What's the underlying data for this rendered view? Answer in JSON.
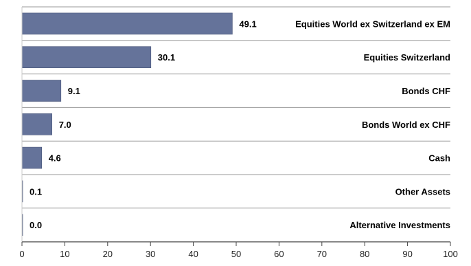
{
  "chart_data": {
    "type": "bar",
    "orientation": "horizontal",
    "categories": [
      "Equities World ex Switzerland ex EM",
      "Equities Switzerland",
      "Bonds CHF",
      "Bonds World ex CHF",
      "Cash",
      "Other Assets",
      "Alternative Investments"
    ],
    "values": [
      49.1,
      30.1,
      9.1,
      7.0,
      4.6,
      0.1,
      0.0
    ],
    "value_labels": [
      "49.1",
      "30.1",
      "9.1",
      "7.0",
      "4.6",
      "0.1",
      "0.0"
    ],
    "xlim": [
      0,
      100
    ],
    "x_ticks": [
      0,
      10,
      20,
      30,
      40,
      50,
      60,
      70,
      80,
      90,
      100
    ],
    "title": "",
    "xlabel": "",
    "ylabel": "",
    "grid": "horizontal separators",
    "legend": "none",
    "colors": {
      "bar": "#65739a",
      "bar_border": "#4a567a",
      "separator": "#9a9a9a",
      "text": "#000000",
      "axis": "#444444"
    }
  }
}
